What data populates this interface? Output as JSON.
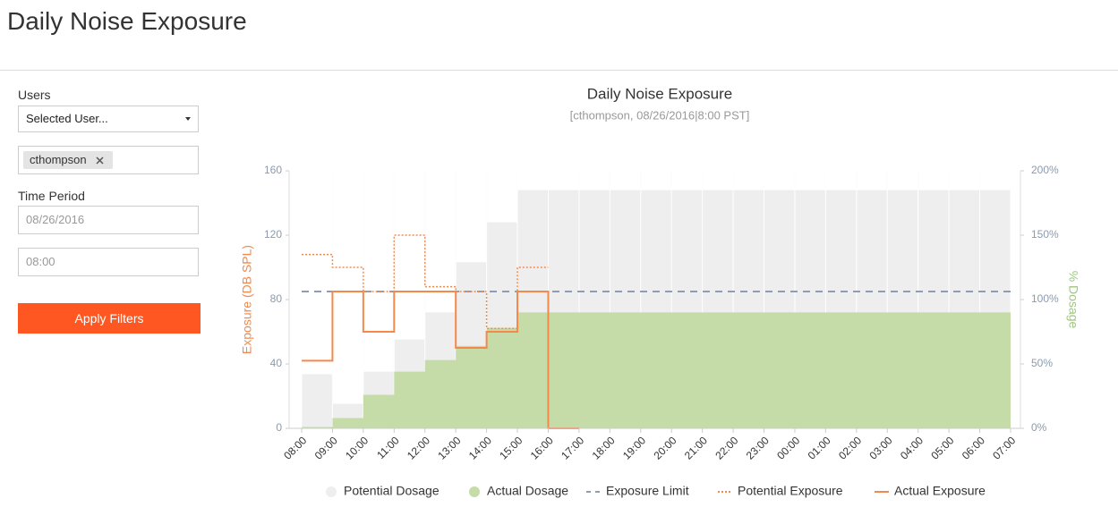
{
  "header": {
    "title": "Daily Noise Exposure"
  },
  "filters": {
    "users_label": "Users",
    "user_select": "Selected User...",
    "selected_users": [
      "cthompson"
    ],
    "time_period_label": "Time Period",
    "date": "08/26/2016",
    "time": "08:00",
    "apply_button": "Apply Filters"
  },
  "chart_data": {
    "type": "step",
    "title": "Daily Noise Exposure",
    "subtitle": "[cthompson, 08/26/2016|8:00 PST]",
    "y_label": "Exposure (DB SPL)",
    "y2_label": "% Dosage",
    "categories": [
      "08:00",
      "09:00",
      "10:00",
      "11:00",
      "12:00",
      "13:00",
      "14:00",
      "15:00",
      "16:00",
      "17:00",
      "18:00",
      "19:00",
      "20:00",
      "21:00",
      "22:00",
      "23:00",
      "00:00",
      "01:00",
      "02:00",
      "03:00",
      "04:00",
      "05:00",
      "06:00",
      "07:00"
    ],
    "ylim": [
      0,
      160
    ],
    "yticks": [
      0,
      40,
      80,
      120,
      160
    ],
    "y2lim": [
      0,
      200
    ],
    "y2ticks": [
      {
        "value": 0,
        "label": "0%"
      },
      {
        "value": 50,
        "label": "50%"
      },
      {
        "value": 100,
        "label": "100%"
      },
      {
        "value": 150,
        "label": "150%"
      },
      {
        "value": 200,
        "label": "200%"
      }
    ],
    "series": [
      {
        "name": "Potential Dosage",
        "color": "#eeeeee",
        "style": "area",
        "axis": "y2",
        "values": [
          42,
          19,
          44,
          69,
          90,
          129,
          160,
          185,
          185,
          185,
          185,
          185,
          185,
          185,
          185,
          185,
          185,
          185,
          185,
          185,
          185,
          185,
          185,
          185
        ]
      },
      {
        "name": "Actual Dosage",
        "color": "#c5dca8",
        "style": "area",
        "axis": "y2",
        "values": [
          1,
          8,
          26,
          44,
          53,
          64,
          78,
          90,
          90,
          90,
          90,
          90,
          90,
          90,
          90,
          90,
          90,
          90,
          90,
          90,
          90,
          90,
          90,
          90
        ]
      },
      {
        "name": "Exposure Limit",
        "color": "#8e9cb5",
        "style": "dashed",
        "values": [
          85,
          85,
          85,
          85,
          85,
          85,
          85,
          85,
          85,
          85,
          85,
          85,
          85,
          85,
          85,
          85,
          85,
          85,
          85,
          85,
          85,
          85,
          85,
          85
        ]
      },
      {
        "name": "Potential Exposure",
        "color": "#f5894a",
        "style": "dotted",
        "values": [
          108,
          100,
          85,
          120,
          88,
          85,
          62,
          100,
          null,
          null,
          null,
          null,
          null,
          null,
          null,
          null,
          null,
          null,
          null,
          null,
          null,
          null,
          null,
          null
        ]
      },
      {
        "name": "Actual Exposure",
        "color": "#f5894a",
        "style": "solid",
        "values": [
          42,
          85,
          60,
          85,
          85,
          50,
          60,
          85,
          0,
          null,
          null,
          null,
          null,
          null,
          null,
          null,
          null,
          null,
          null,
          null,
          null,
          null,
          null,
          null
        ]
      }
    ]
  }
}
